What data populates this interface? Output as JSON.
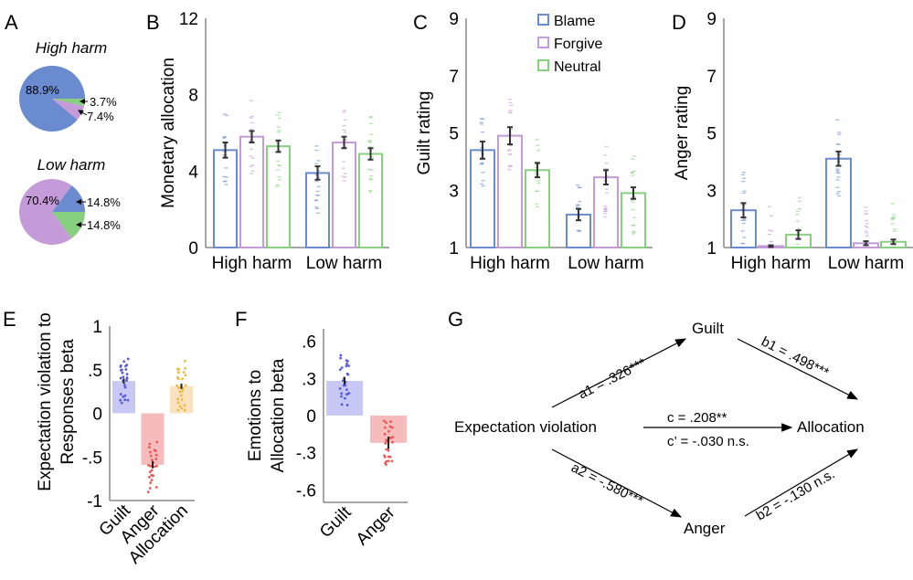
{
  "colors": {
    "blame": "#6a8bd0",
    "forgive": "#c59ad8",
    "neutral": "#86d07f",
    "guilt_fill": "#c8c8f6",
    "guilt_dot": "#5a5ae0",
    "anger_fill": "#f6bcbc",
    "anger_dot": "#e85a5a",
    "alloc_fill": "#f8e2bf",
    "alloc_dot": "#f0b840",
    "axis": "#888888"
  },
  "legend": [
    "Blame",
    "Forgive",
    "Neutral"
  ],
  "chart_data": [
    {
      "panel": "A",
      "type": "pie",
      "title": "High harm",
      "slices": [
        {
          "label": "88.9%",
          "value": 88.9,
          "series": "Blame"
        },
        {
          "label": "3.7%",
          "value": 3.7,
          "series": "Neutral"
        },
        {
          "label": "7.4%",
          "value": 7.4,
          "series": "Forgive"
        }
      ]
    },
    {
      "panel": "A",
      "type": "pie",
      "title": "Low harm",
      "slices": [
        {
          "label": "70.4%",
          "value": 70.4,
          "series": "Forgive"
        },
        {
          "label": "14.8%",
          "value": 14.8,
          "series": "Blame"
        },
        {
          "label": "14.8%",
          "value": 14.8,
          "series": "Neutral"
        }
      ]
    },
    {
      "panel": "B",
      "type": "bar",
      "ylabel": "Monetary allocation",
      "ylim": [
        0,
        12
      ],
      "yticks": [
        "0",
        "4",
        "8",
        "12"
      ],
      "categories": [
        "High harm",
        "Low harm"
      ],
      "series": [
        {
          "name": "Blame",
          "values": [
            5.1,
            3.9
          ],
          "se": [
            0.4,
            0.35
          ]
        },
        {
          "name": "Forgive",
          "values": [
            5.8,
            5.5
          ],
          "se": [
            0.3,
            0.3
          ]
        },
        {
          "name": "Neutral",
          "values": [
            5.3,
            4.9
          ],
          "se": [
            0.3,
            0.3
          ]
        }
      ]
    },
    {
      "panel": "C",
      "type": "bar",
      "ylabel": "Guilt rating",
      "ylim": [
        1,
        9
      ],
      "yticks": [
        "1",
        "3",
        "5",
        "7",
        "9"
      ],
      "categories": [
        "High harm",
        "Low harm"
      ],
      "series": [
        {
          "name": "Blame",
          "values": [
            4.4,
            2.15
          ],
          "se": [
            0.3,
            0.2
          ]
        },
        {
          "name": "Forgive",
          "values": [
            4.9,
            3.45
          ],
          "se": [
            0.3,
            0.25
          ]
        },
        {
          "name": "Neutral",
          "values": [
            3.7,
            2.9
          ],
          "se": [
            0.25,
            0.2
          ]
        }
      ]
    },
    {
      "panel": "D",
      "type": "bar",
      "ylabel": "Anger rating",
      "ylim": [
        1,
        9
      ],
      "yticks": [
        "1",
        "3",
        "5",
        "7",
        "9"
      ],
      "categories": [
        "High harm",
        "Low harm"
      ],
      "series": [
        {
          "name": "Blame",
          "values": [
            2.3,
            4.1
          ],
          "se": [
            0.25,
            0.25
          ]
        },
        {
          "name": "Forgive",
          "values": [
            1.05,
            1.15
          ],
          "se": [
            0.03,
            0.07
          ]
        },
        {
          "name": "Neutral",
          "values": [
            1.45,
            1.2
          ],
          "se": [
            0.15,
            0.08
          ]
        }
      ]
    },
    {
      "panel": "E",
      "type": "bar",
      "ylabel": [
        "Expectation violation to",
        "Responses beta"
      ],
      "ylim": [
        -1,
        1
      ],
      "yticks": [
        "-1",
        "-.5",
        "0",
        ".5",
        "1"
      ],
      "categories": [
        "Guilt",
        "Anger",
        "Allocation"
      ],
      "values": [
        0.37,
        -0.59,
        0.31
      ],
      "se": [
        0.03,
        0.04,
        0.03
      ]
    },
    {
      "panel": "F",
      "type": "bar",
      "ylabel": [
        "Emotions to",
        "Allocation beta"
      ],
      "ylim": [
        -0.7,
        0.7
      ],
      "yticks": [
        "-.6",
        "-.3",
        "0",
        ".3",
        ".6"
      ],
      "categories": [
        "Guilt",
        "Anger"
      ],
      "values": [
        0.28,
        -0.22
      ],
      "se": [
        0.03,
        0.05
      ]
    }
  ],
  "panel_labels": [
    "A",
    "B",
    "C",
    "D",
    "E",
    "F",
    "G"
  ],
  "mediation": {
    "nodes": {
      "x": "Expectation violation",
      "m1": "Guilt",
      "m2": "Anger",
      "y": "Allocation"
    },
    "paths": {
      "a1": "a1 = .326***",
      "b1": "b1 = .498***",
      "c": "c = .208**",
      "c_prime": "c’ = -.030 n.s.",
      "a2": "a2 = -.580***",
      "b2": "b2 = -.130 n.s."
    }
  }
}
